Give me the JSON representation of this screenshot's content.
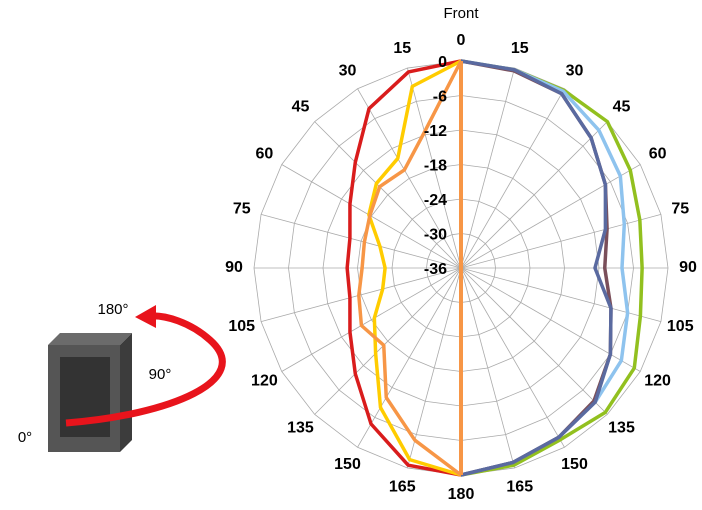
{
  "chart_data": {
    "type": "polar",
    "angles": [
      0,
      15,
      30,
      45,
      60,
      75,
      90,
      105,
      120,
      135,
      150,
      165,
      180
    ],
    "rlim": [
      -36,
      0
    ],
    "rticks": [
      0,
      -6,
      -12,
      -18,
      -24,
      -30,
      -36
    ],
    "grid": true,
    "annotations": [
      "Front",
      "180°",
      "90°",
      "0°"
    ],
    "series": [
      {
        "side": "right",
        "color": "#92c01f",
        "values": [
          0,
          -0.3,
          -0.3,
          0,
          -2,
          -3.8,
          -4.5,
          -3.7,
          -1.2,
          -0.5,
          -1.5,
          -0.5,
          0
        ]
      },
      {
        "side": "right",
        "color": "#8ec3ee",
        "values": [
          0,
          -0.3,
          -0.5,
          -2.1,
          -4,
          -6.6,
          -8,
          -6,
          -3.8,
          -3,
          -2,
          -1,
          0
        ]
      },
      {
        "side": "right",
        "color": "#7a4f5a",
        "values": [
          0,
          -0.5,
          -1,
          -4,
          -7,
          -9.7,
          -11,
          -9,
          -6,
          -3.3,
          -2,
          -1,
          0
        ]
      },
      {
        "side": "right",
        "color": "#5a6aa0",
        "values": [
          0,
          -0.3,
          -1,
          -4,
          -7,
          -10,
          -12.7,
          -9,
          -6,
          -3,
          -2,
          -1,
          0
        ]
      },
      {
        "side": "left",
        "color": "#d91c1c",
        "values": [
          0,
          -0.7,
          -4,
          -10,
          -13.7,
          -16,
          -16.2,
          -16,
          -13.7,
          -10,
          -4.7,
          -0.5,
          0
        ]
      },
      {
        "side": "left",
        "color": "#ffcc00",
        "values": [
          0,
          -3.3,
          -14,
          -15.2,
          -17.5,
          -21.4,
          -22.8,
          -21.9,
          -18.6,
          -15,
          -8,
          -1.5,
          0
        ]
      },
      {
        "side": "left",
        "color": "#f79646",
        "values": [
          0,
          -11.5,
          -16.3,
          -16,
          -17.7,
          -18.6,
          -18.8,
          -17.6,
          -16,
          -17,
          -10,
          -5,
          0
        ]
      }
    ]
  }
}
